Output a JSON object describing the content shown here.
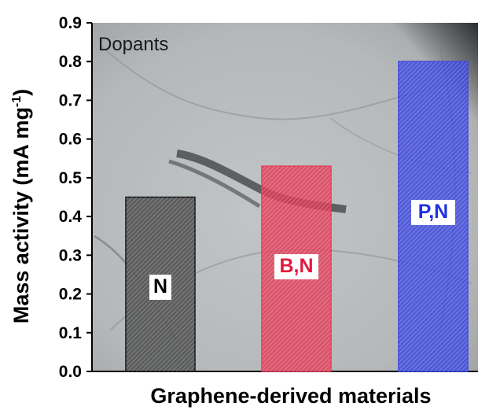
{
  "chart_data": {
    "type": "bar",
    "categories": [
      "N",
      "B,N",
      "P,N"
    ],
    "values": [
      0.45,
      0.53,
      0.8
    ],
    "bar_colors": [
      "#555555",
      "#e23a56",
      "#3a45e0"
    ],
    "bar_label_colors": [
      "#000000",
      "#e2183f",
      "#2030e0"
    ],
    "xlabel": "Graphene-derived materials",
    "ylabel": "Mass activity (mA mg",
    "ylabel_sup": "-1",
    "ylabel_close": ")",
    "ylim": [
      0.0,
      0.9
    ],
    "yticks": [
      "0.0",
      "0.1",
      "0.2",
      "0.3",
      "0.4",
      "0.5",
      "0.6",
      "0.7",
      "0.8",
      "0.9"
    ],
    "inset_label": "Dopants",
    "background": "TEM micrograph of graphene sheets (grayscale)",
    "grid": false
  }
}
